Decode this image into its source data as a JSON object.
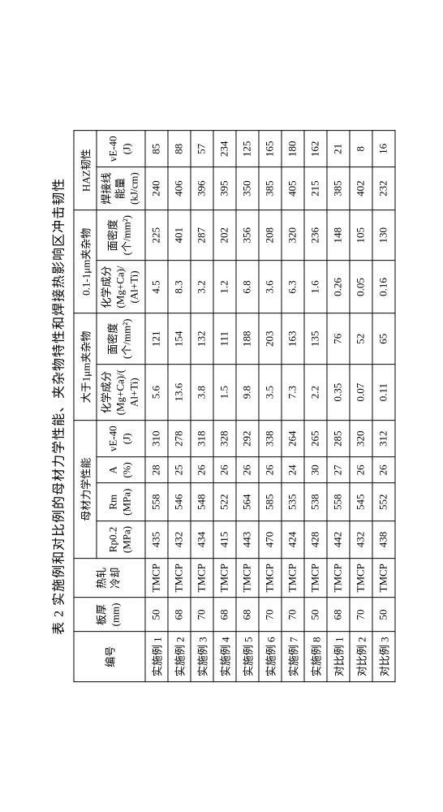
{
  "caption": "表 2  实施例和对比例的母材力学性能、夹杂物特性和焊接热影响区冲击韧性",
  "headers": {
    "id": "编号",
    "thickness": {
      "l1": "板厚",
      "l2": "(mm)"
    },
    "process": {
      "l1": "热轧",
      "l2": "冷却"
    },
    "base_metal_group": "母材力学性能",
    "rp": {
      "l1": "Rp0.2",
      "l2": "(MPa)"
    },
    "rm": {
      "l1": "Rm",
      "l2": "(MPa)"
    },
    "a": {
      "l1": "A",
      "l2": "(%)"
    },
    "ve_base": {
      "l1": "vE-40",
      "l2": "(J)"
    },
    "gt1um_group": "大于1μm夹杂物",
    "chem_gt1": {
      "l1": "化学成分",
      "l2": "(Mg+Ca)/(",
      "l3": "Al+Ti)"
    },
    "dens_gt1": {
      "l1": "面密度",
      "l2": "(个/mm²)"
    },
    "pt1_1um_group": "0.1-1μm夹杂物",
    "chem_pt1": {
      "l1": "化学成分",
      "l2": "(Mg+Ca)/",
      "l3": "(Al+Ti)"
    },
    "dens_pt1": {
      "l1": "面密度",
      "l2": "(个/mm²)"
    },
    "haz_group": "HAZ韧性",
    "weld_energy": {
      "l1": "焊接线",
      "l2": "能量",
      "l3": "(kJ/cm)"
    },
    "ve_haz": {
      "l1": "vE-40",
      "l2": "(J)"
    }
  },
  "rows": [
    {
      "id": "实施例 1",
      "thick": "50",
      "proc": "TMCP",
      "rp": "435",
      "rm": "558",
      "a": "28",
      "ve": "310",
      "c1": "5.6",
      "d1": "121",
      "c2": "4.5",
      "d2": "225",
      "we": "240",
      "vh": "85"
    },
    {
      "id": "实施例 2",
      "thick": "68",
      "proc": "TMCP",
      "rp": "432",
      "rm": "546",
      "a": "25",
      "ve": "278",
      "c1": "13.6",
      "d1": "154",
      "c2": "8.3",
      "d2": "401",
      "we": "406",
      "vh": "88"
    },
    {
      "id": "实施例 3",
      "thick": "70",
      "proc": "TMCP",
      "rp": "434",
      "rm": "548",
      "a": "26",
      "ve": "318",
      "c1": "3.8",
      "d1": "132",
      "c2": "3.2",
      "d2": "287",
      "we": "396",
      "vh": "57"
    },
    {
      "id": "实施例 4",
      "thick": "68",
      "proc": "TMCP",
      "rp": "415",
      "rm": "522",
      "a": "26",
      "ve": "328",
      "c1": "1.5",
      "d1": "111",
      "c2": "1.2",
      "d2": "202",
      "we": "395",
      "vh": "234"
    },
    {
      "id": "实施例 5",
      "thick": "68",
      "proc": "TMCP",
      "rp": "443",
      "rm": "564",
      "a": "26",
      "ve": "292",
      "c1": "9.8",
      "d1": "188",
      "c2": "6.8",
      "d2": "356",
      "we": "350",
      "vh": "125"
    },
    {
      "id": "实施例 6",
      "thick": "70",
      "proc": "TMCP",
      "rp": "470",
      "rm": "585",
      "a": "26",
      "ve": "338",
      "c1": "3.5",
      "d1": "203",
      "c2": "3.6",
      "d2": "208",
      "we": "385",
      "vh": "165"
    },
    {
      "id": "实施例 7",
      "thick": "70",
      "proc": "TMCP",
      "rp": "424",
      "rm": "535",
      "a": "24",
      "ve": "264",
      "c1": "7.3",
      "d1": "163",
      "c2": "6.3",
      "d2": "320",
      "we": "405",
      "vh": "180"
    },
    {
      "id": "实施例 8",
      "thick": "50",
      "proc": "TMCP",
      "rp": "428",
      "rm": "538",
      "a": "30",
      "ve": "265",
      "c1": "2.2",
      "d1": "135",
      "c2": "1.6",
      "d2": "236",
      "we": "215",
      "vh": "162"
    },
    {
      "id": "对比例 1",
      "thick": "68",
      "proc": "TMCP",
      "rp": "442",
      "rm": "558",
      "a": "27",
      "ve": "285",
      "c1": "0.35",
      "d1": "76",
      "c2": "0.26",
      "d2": "148",
      "we": "385",
      "vh": "21"
    },
    {
      "id": "对比例 2",
      "thick": "70",
      "proc": "TMCP",
      "rp": "432",
      "rm": "545",
      "a": "26",
      "ve": "320",
      "c1": "0.07",
      "d1": "52",
      "c2": "0.05",
      "d2": "105",
      "we": "402",
      "vh": "8"
    },
    {
      "id": "对比例 3",
      "thick": "50",
      "proc": "TMCP",
      "rp": "438",
      "rm": "552",
      "a": "26",
      "ve": "312",
      "c1": "0.11",
      "d1": "65",
      "c2": "0.16",
      "d2": "130",
      "we": "232",
      "vh": "16"
    }
  ]
}
